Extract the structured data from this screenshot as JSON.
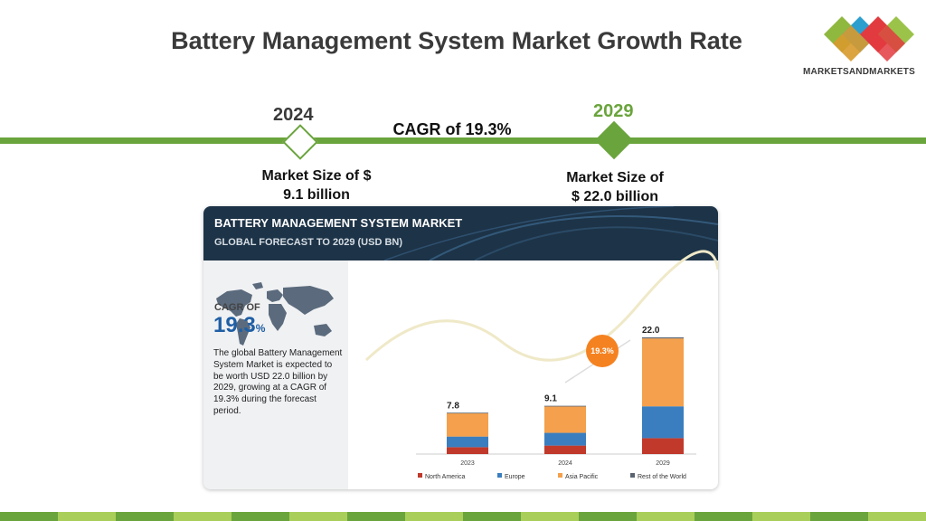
{
  "title": "Battery Management System Market Growth Rate",
  "logo": {
    "text": "MARKETSANDMARKETS",
    "icon": "four-diamond-logo"
  },
  "timeline": {
    "start_year": "2024",
    "end_year": "2029",
    "cagr_label": "CAGR of 19.3%",
    "start_size": [
      "Market Size of $",
      "9.1 billion"
    ],
    "end_size": [
      "Market Size of",
      "$ 22.0 billion"
    ]
  },
  "card": {
    "title": "BATTERY MANAGEMENT SYSTEM MARKET",
    "subtitle": "GLOBAL FORECAST TO 2029 (USD BN)",
    "cagr_of": "CAGR OF",
    "cagr_value": "19.3",
    "cagr_unit": "%",
    "description": "The global Battery Management System Market is expected to be worth USD 22.0 billion by 2029, growing at a CAGR of 19.3% during the forecast period.",
    "badge": "19.3%",
    "map_icon": "world-map-icon"
  },
  "colors": {
    "accent_green": "#6aa43c",
    "header_navy": "#1d3347",
    "north_america": "#c0392b",
    "europe": "#3a7ebf",
    "asia_pacific": "#f4a04c",
    "rest_of_world": "#5a6470",
    "badge": "#f58220"
  },
  "chart_data": {
    "type": "bar",
    "stacked": true,
    "categories": [
      "2023",
      "2024",
      "2029"
    ],
    "totals": [
      "7.8",
      "9.1",
      "22.0"
    ],
    "series": [
      {
        "name": "North America",
        "values": [
          1.3,
          1.6,
          3.0
        ]
      },
      {
        "name": "Europe",
        "values": [
          2.0,
          2.4,
          6.0
        ]
      },
      {
        "name": "Asia Pacific",
        "values": [
          4.4,
          5.0,
          12.8
        ]
      },
      {
        "name": "Rest of the World",
        "values": [
          0.1,
          0.1,
          0.2
        ]
      }
    ],
    "legend_position": "bottom",
    "ylim": [
      0,
      22.0
    ]
  }
}
